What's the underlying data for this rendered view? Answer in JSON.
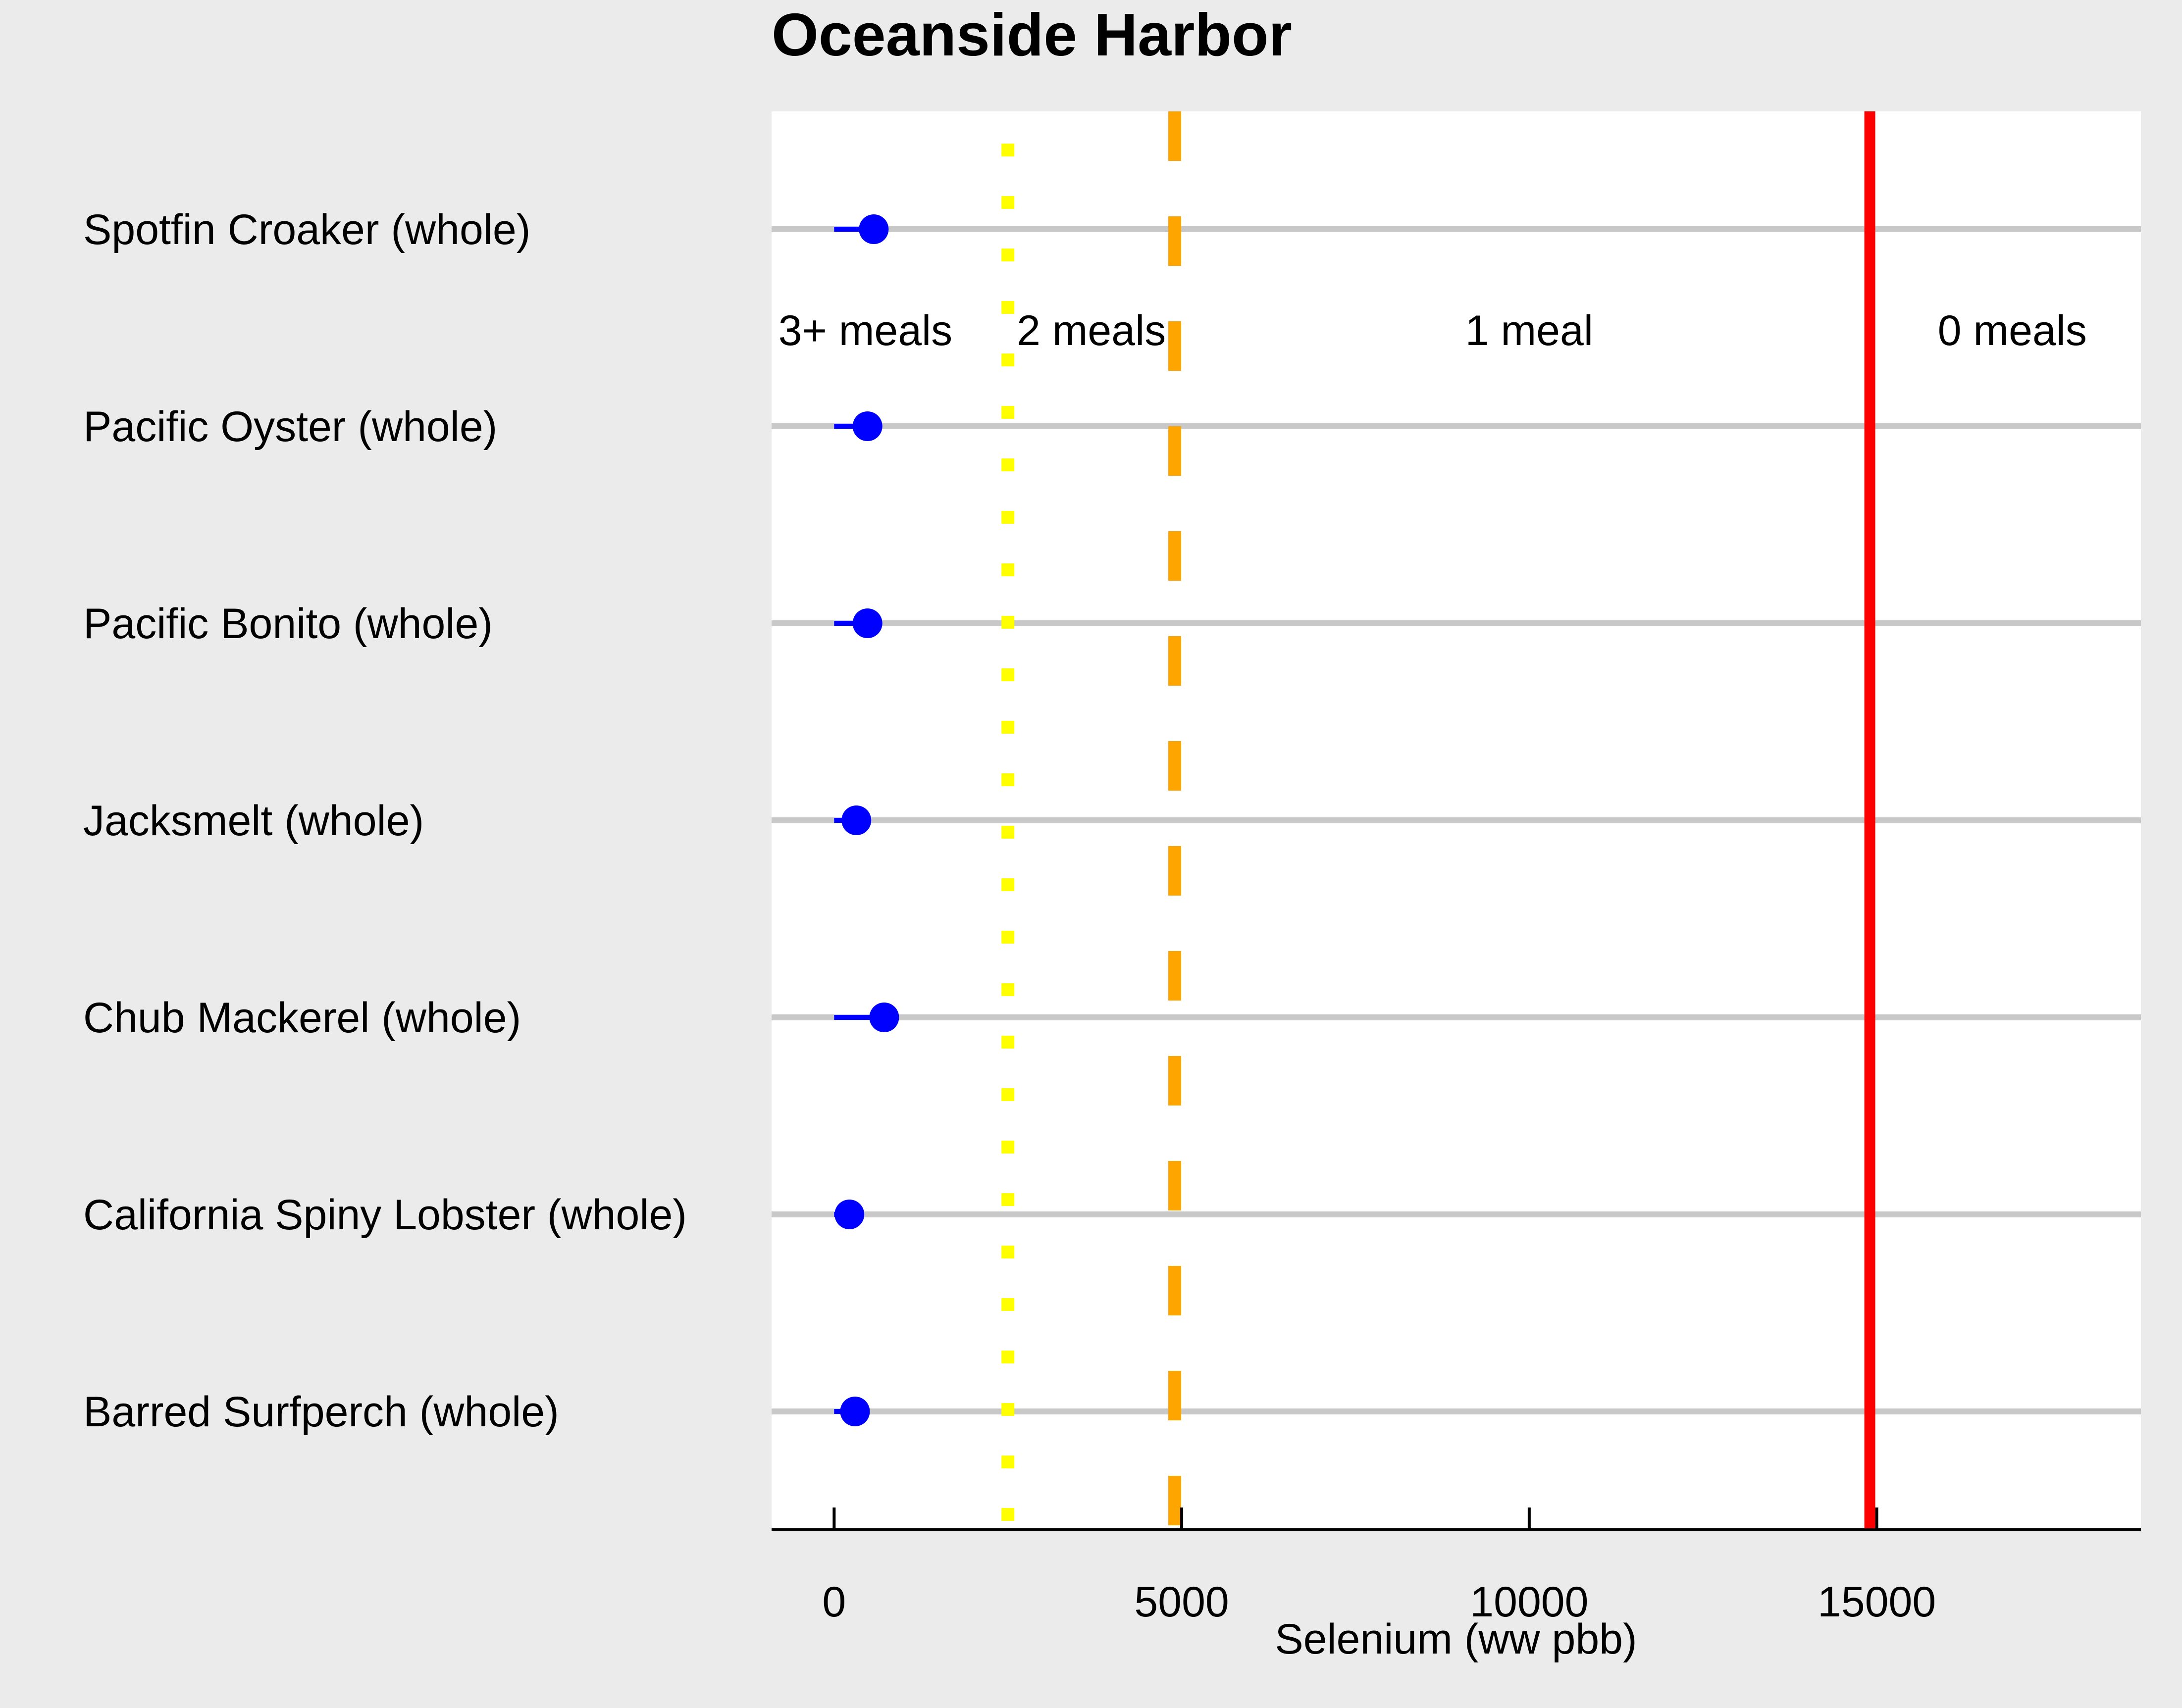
{
  "chart_data": {
    "type": "dot",
    "title": "Oceanside Harbor",
    "xlabel": "Selenium (ww pbb)",
    "xlim": [
      -900,
      18800
    ],
    "xticks": [
      0,
      5000,
      10000,
      15000
    ],
    "tick_labels": [
      "0",
      "5000",
      "10000",
      "15000"
    ],
    "grid": true,
    "categories": [
      "Spotfin Croaker (whole)",
      "Pacific Oyster (whole)",
      "Pacific Bonito (whole)",
      "Jacksmelt (whole)",
      "Chub Mackerel (whole)",
      "California Spiny Lobster (whole)",
      "Barred Surfperch (whole)"
    ],
    "series": [
      {
        "values": [
          570,
          480,
          480,
          320,
          720,
          220,
          300
        ],
        "interval_low": [
          0,
          0,
          0,
          0,
          0,
          0,
          0
        ],
        "color": "#0000ff"
      }
    ],
    "thresholds": [
      {
        "value": 2500,
        "color": "#ffff00",
        "style": "dotted"
      },
      {
        "value": 4900,
        "color": "#ffa500",
        "style": "dashed"
      },
      {
        "value": 14900,
        "color": "#ff0000",
        "style": "solid"
      }
    ],
    "zone_labels": [
      {
        "text": "3+ meals",
        "x": 450
      },
      {
        "text": "2 meals",
        "x": 3700
      },
      {
        "text": "1 meal",
        "x": 10000
      },
      {
        "text": "0 meals",
        "x": 16950
      }
    ]
  },
  "colors": {
    "background": "#ebebeb",
    "panel": "#ffffff",
    "gridline": "#c8c8c8",
    "point": "#0000ff"
  }
}
